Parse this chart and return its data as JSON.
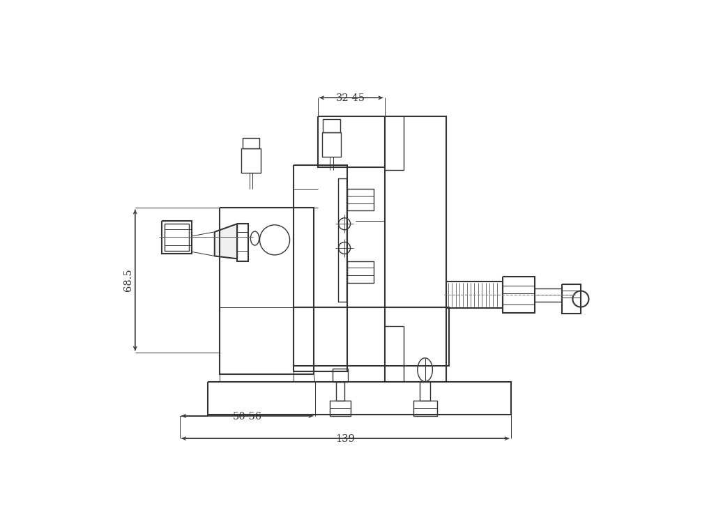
{
  "background_color": "#ffffff",
  "line_color": "#333333",
  "lw_main": 1.5,
  "lw_detail": 1.0,
  "lw_thin": 0.7,
  "dim_fontsize": 10.5
}
